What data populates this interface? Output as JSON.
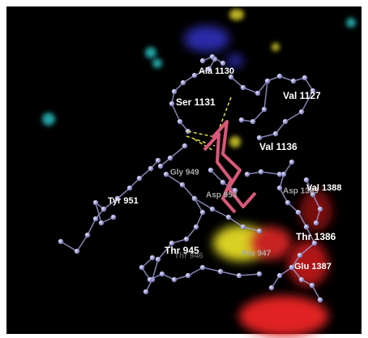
{
  "labels": [
    "Ala 1130",
    "Ser 1131",
    "Val 1127",
    "Val 1136",
    "Gly 949",
    "Tyr 951",
    "Asp 953",
    "Asp 1389",
    "Val 1388",
    "Thr 1386",
    "Thr 945",
    "Thr 946",
    "Pro 947",
    "Glu 1387"
  ]
}
